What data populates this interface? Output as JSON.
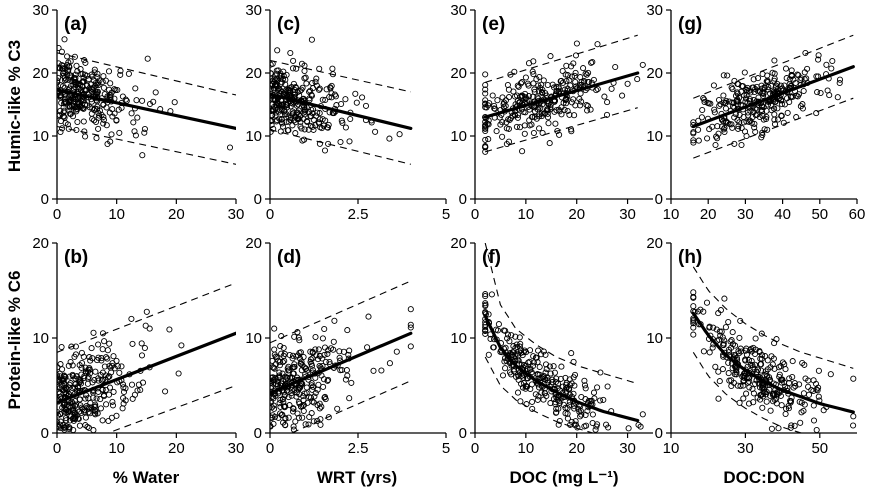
{
  "figure": {
    "row_labels": [
      "Humic-like % C3",
      "Protein-like % C6"
    ],
    "column_titles": [
      "% Water",
      "WRT (yrs)",
      "DOC (mg L⁻¹)",
      "DOC:DON"
    ]
  },
  "chart_data": [
    {
      "panel": "(a)",
      "type": "scatter",
      "row": 0,
      "col": 0,
      "xlabel": "",
      "ylabel": "Humic-like % C3",
      "xlim": [
        0,
        30
      ],
      "ylim": [
        0,
        30
      ],
      "xticks": [
        "0",
        "10",
        "20",
        "30"
      ],
      "yticks": [
        "0",
        "10",
        "20",
        "30"
      ],
      "x_mean": 7,
      "x_sd": 6,
      "x_min": 0,
      "x_max": 29,
      "x_shape": "skew",
      "y_sd": 2.8,
      "n_points": 300,
      "fit": {
        "x": [
          0,
          30
        ],
        "y": [
          17.3,
          11.2
        ]
      },
      "band_upper": {
        "x": [
          0,
          30
        ],
        "y": [
          23.2,
          16.5
        ]
      },
      "band_lower": {
        "x": [
          0,
          30
        ],
        "y": [
          11.5,
          5.5
        ]
      }
    },
    {
      "panel": "(c)",
      "type": "scatter",
      "row": 0,
      "col": 1,
      "xlabel": "",
      "ylabel": "",
      "xlim": [
        0,
        5
      ],
      "ylim": [
        0,
        30
      ],
      "xticks": [
        "0",
        "2.5",
        "5"
      ],
      "yticks": [
        "0",
        "10",
        "20",
        "30"
      ],
      "x_mean": 1.1,
      "x_sd": 1.0,
      "x_min": 0,
      "x_max": 4.0,
      "x_shape": "skew",
      "y_sd": 2.8,
      "n_points": 300,
      "fit": {
        "x": [
          0,
          4
        ],
        "y": [
          16.6,
          11.2
        ]
      },
      "band_upper": {
        "x": [
          0,
          4
        ],
        "y": [
          22.0,
          17.0
        ]
      },
      "band_lower": {
        "x": [
          0,
          4
        ],
        "y": [
          11.0,
          5.5
        ]
      }
    },
    {
      "panel": "(e)",
      "type": "scatter",
      "row": 0,
      "col": 2,
      "xlabel": "",
      "ylabel": "",
      "xlim": [
        0,
        35
      ],
      "ylim": [
        0,
        30
      ],
      "xticks": [
        "0",
        "10",
        "20",
        "30"
      ],
      "yticks": [
        "0",
        "10",
        "20",
        "30"
      ],
      "x_mean": 13,
      "x_sd": 7,
      "x_min": 2,
      "x_max": 33,
      "x_shape": "normal",
      "y_sd": 2.6,
      "n_points": 300,
      "fit": {
        "x": [
          2,
          32
        ],
        "y": [
          13.0,
          20.0
        ]
      },
      "band_upper": {
        "x": [
          2,
          32
        ],
        "y": [
          18.5,
          26.0
        ]
      },
      "band_lower": {
        "x": [
          2,
          32
        ],
        "y": [
          7.5,
          14.5
        ]
      }
    },
    {
      "panel": "(g)",
      "type": "scatter",
      "row": 0,
      "col": 3,
      "xlabel": "",
      "ylabel": "",
      "xlim": [
        10,
        60
      ],
      "ylim": [
        0,
        30
      ],
      "xticks": [
        "10",
        "20",
        "30",
        "40",
        "50",
        "60"
      ],
      "yticks": [
        "0",
        "10",
        "20",
        "30"
      ],
      "x_mean": 33,
      "x_sd": 9,
      "x_min": 16,
      "x_max": 59,
      "x_shape": "normal",
      "y_sd": 2.4,
      "n_points": 300,
      "fit": {
        "x": [
          16,
          59
        ],
        "y": [
          11.5,
          21.0
        ]
      },
      "band_upper": {
        "x": [
          16,
          59
        ],
        "y": [
          16.0,
          26.0
        ]
      },
      "band_lower": {
        "x": [
          16,
          59
        ],
        "y": [
          6.5,
          16.0
        ]
      }
    },
    {
      "panel": "(b)",
      "type": "scatter",
      "row": 1,
      "col": 0,
      "xlabel": "% Water",
      "ylabel": "Protein-like % C6",
      "xlim": [
        0,
        30
      ],
      "ylim": [
        0,
        20
      ],
      "xticks": [
        "0",
        "10",
        "20",
        "30"
      ],
      "yticks": [
        "0",
        "10",
        "20"
      ],
      "x_mean": 7,
      "x_sd": 6,
      "x_min": 0,
      "x_max": 29,
      "x_shape": "skew",
      "y_sd": 2.4,
      "n_points": 300,
      "fit": {
        "x": [
          0,
          30
        ],
        "y": [
          3.2,
          10.5
        ]
      },
      "band_upper": {
        "x": [
          0,
          30
        ],
        "y": [
          8.5,
          15.8
        ]
      },
      "band_lower": {
        "x": [
          0,
          30
        ],
        "y": [
          -2.0,
          5.0
        ]
      }
    },
    {
      "panel": "(d)",
      "type": "scatter",
      "row": 1,
      "col": 1,
      "xlabel": "WRT (yrs)",
      "ylabel": "",
      "xlim": [
        0,
        5
      ],
      "ylim": [
        0,
        20
      ],
      "xticks": [
        "0",
        "2.5",
        "5"
      ],
      "yticks": [
        "0",
        "10",
        "20"
      ],
      "x_mean": 1.1,
      "x_sd": 1.0,
      "x_min": 0,
      "x_max": 4.0,
      "x_shape": "skew",
      "y_sd": 2.4,
      "n_points": 300,
      "fit": {
        "x": [
          0,
          4
        ],
        "y": [
          4.2,
          10.5
        ]
      },
      "band_upper": {
        "x": [
          0,
          4
        ],
        "y": [
          9.5,
          16.0
        ]
      },
      "band_lower": {
        "x": [
          0,
          4
        ],
        "y": [
          -1.0,
          5.5
        ]
      }
    },
    {
      "panel": "(f)",
      "type": "scatter",
      "row": 1,
      "col": 2,
      "xlabel": "DOC (mg L⁻¹)",
      "ylabel": "",
      "xlim": [
        0,
        35
      ],
      "ylim": [
        0,
        20
      ],
      "xticks": [
        "0",
        "10",
        "20",
        "30"
      ],
      "yticks": [
        "0",
        "10",
        "20"
      ],
      "x_mean": 13,
      "x_sd": 7,
      "x_min": 2,
      "x_max": 33,
      "x_shape": "normal",
      "y_sd": 1.5,
      "n_points": 300,
      "fit": {
        "x": [
          2,
          5,
          8,
          12,
          16,
          20,
          25,
          32
        ],
        "y": [
          12.3,
          9.0,
          7.1,
          5.5,
          4.3,
          3.3,
          2.3,
          1.3
        ]
      },
      "band_upper": {
        "x": [
          2,
          5,
          8,
          12,
          16,
          20,
          25,
          32
        ],
        "y": [
          20.0,
          13.5,
          11.0,
          9.3,
          8.0,
          7.1,
          6.3,
          5.2
        ]
      },
      "band_lower": {
        "x": [
          2,
          5,
          8,
          12,
          16,
          20,
          25,
          32
        ],
        "y": [
          8.0,
          5.0,
          3.5,
          2.2,
          1.2,
          0.5,
          -0.3,
          -1.2
        ]
      }
    },
    {
      "panel": "(h)",
      "type": "scatter",
      "row": 1,
      "col": 3,
      "xlabel": "DOC:DON",
      "ylabel": "",
      "xlim": [
        10,
        60
      ],
      "ylim": [
        0,
        20
      ],
      "xticks": [
        "10",
        "30",
        "50"
      ],
      "yticks": [
        "0",
        "10",
        "20"
      ],
      "x_mean": 33,
      "x_sd": 9,
      "x_min": 16,
      "x_max": 59,
      "x_shape": "normal",
      "y_sd": 1.8,
      "n_points": 300,
      "fit": {
        "x": [
          16,
          20,
          25,
          30,
          35,
          40,
          45,
          50,
          55,
          59
        ],
        "y": [
          12.6,
          10.3,
          8.1,
          6.6,
          5.4,
          4.5,
          3.8,
          3.1,
          2.6,
          2.2
        ]
      },
      "band_upper": {
        "x": [
          16,
          20,
          25,
          30,
          35,
          40,
          45,
          50,
          55,
          59
        ],
        "y": [
          17.5,
          15.0,
          13.0,
          11.5,
          10.3,
          9.3,
          8.5,
          7.9,
          7.3,
          6.8
        ]
      },
      "band_lower": {
        "x": [
          16,
          20,
          25,
          30,
          35,
          40,
          45,
          50,
          55,
          59
        ],
        "y": [
          8.5,
          6.0,
          4.0,
          2.6,
          1.5,
          0.6,
          0.0,
          -0.6,
          -1.0,
          -1.4
        ]
      }
    }
  ]
}
